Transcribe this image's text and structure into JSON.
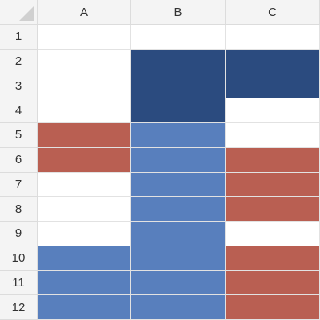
{
  "columns": [
    "A",
    "B",
    "C"
  ],
  "rows": [
    "1",
    "2",
    "3",
    "4",
    "5",
    "6",
    "7",
    "8",
    "9",
    "10",
    "11",
    "12"
  ],
  "colors": {
    "dark": "#2b4b7f",
    "blue": "#587fbd",
    "red": "#b95f52",
    "empty": "#ffffff"
  },
  "grid": [
    [
      "",
      "",
      ""
    ],
    [
      "",
      "dark",
      "dark"
    ],
    [
      "",
      "dark",
      "dark"
    ],
    [
      "",
      "dark",
      ""
    ],
    [
      "red",
      "blue",
      ""
    ],
    [
      "red",
      "blue",
      "red"
    ],
    [
      "",
      "blue",
      "red"
    ],
    [
      "",
      "blue",
      "red"
    ],
    [
      "",
      "blue",
      ""
    ],
    [
      "blue",
      "blue",
      "red"
    ],
    [
      "blue",
      "blue",
      "red"
    ],
    [
      "blue",
      "blue",
      "red"
    ]
  ]
}
